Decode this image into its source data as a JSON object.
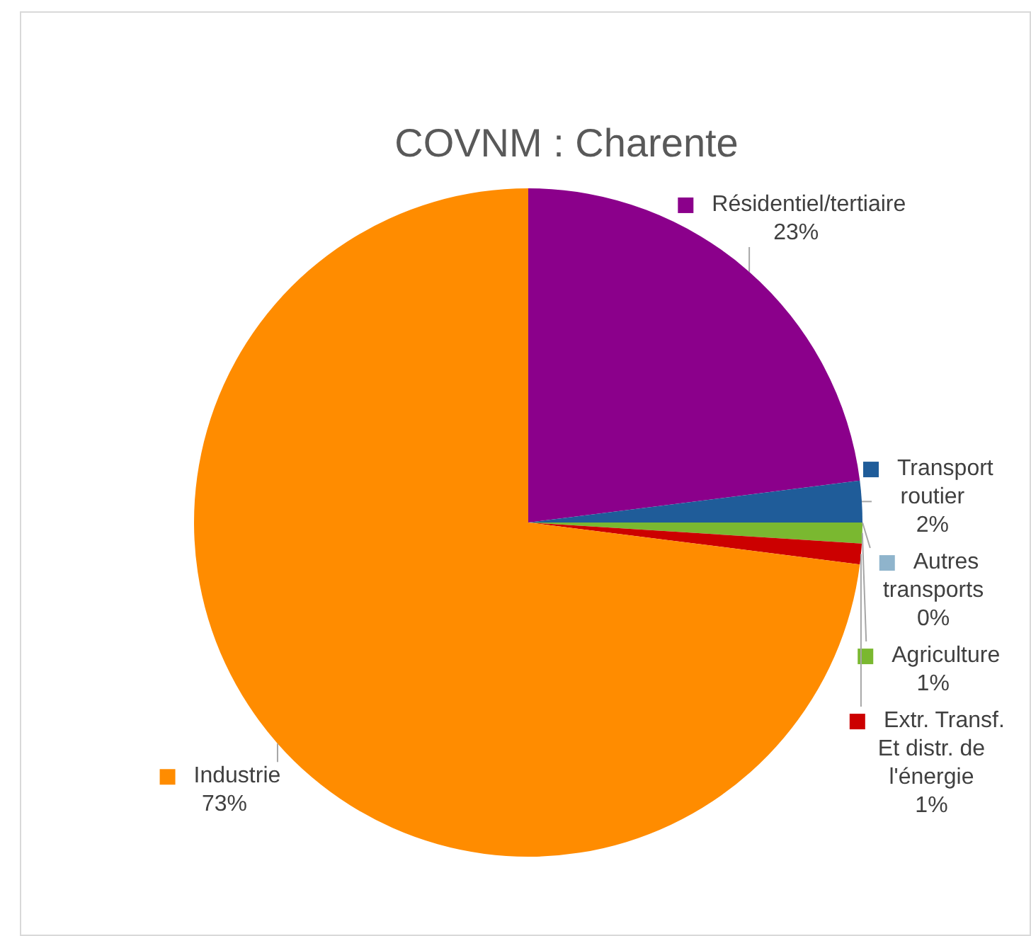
{
  "chart_data": {
    "type": "pie",
    "title": "COVNM : Charente",
    "categories": [
      "Résidentiel/tertiaire",
      "Transport routier",
      "Autres transports",
      "Agriculture",
      "Extr. Transf. Et distr. de l'énergie",
      "Industrie"
    ],
    "values": [
      23,
      2,
      0,
      1,
      1,
      73
    ],
    "colors": [
      "#8b008b",
      "#1f5c99",
      "#8fb4cc",
      "#7ab830",
      "#cc0000",
      "#ff8c00"
    ],
    "legend": "right",
    "value_labels": [
      "23%",
      "2%",
      "0%",
      "1%",
      "1%",
      "73%"
    ]
  }
}
